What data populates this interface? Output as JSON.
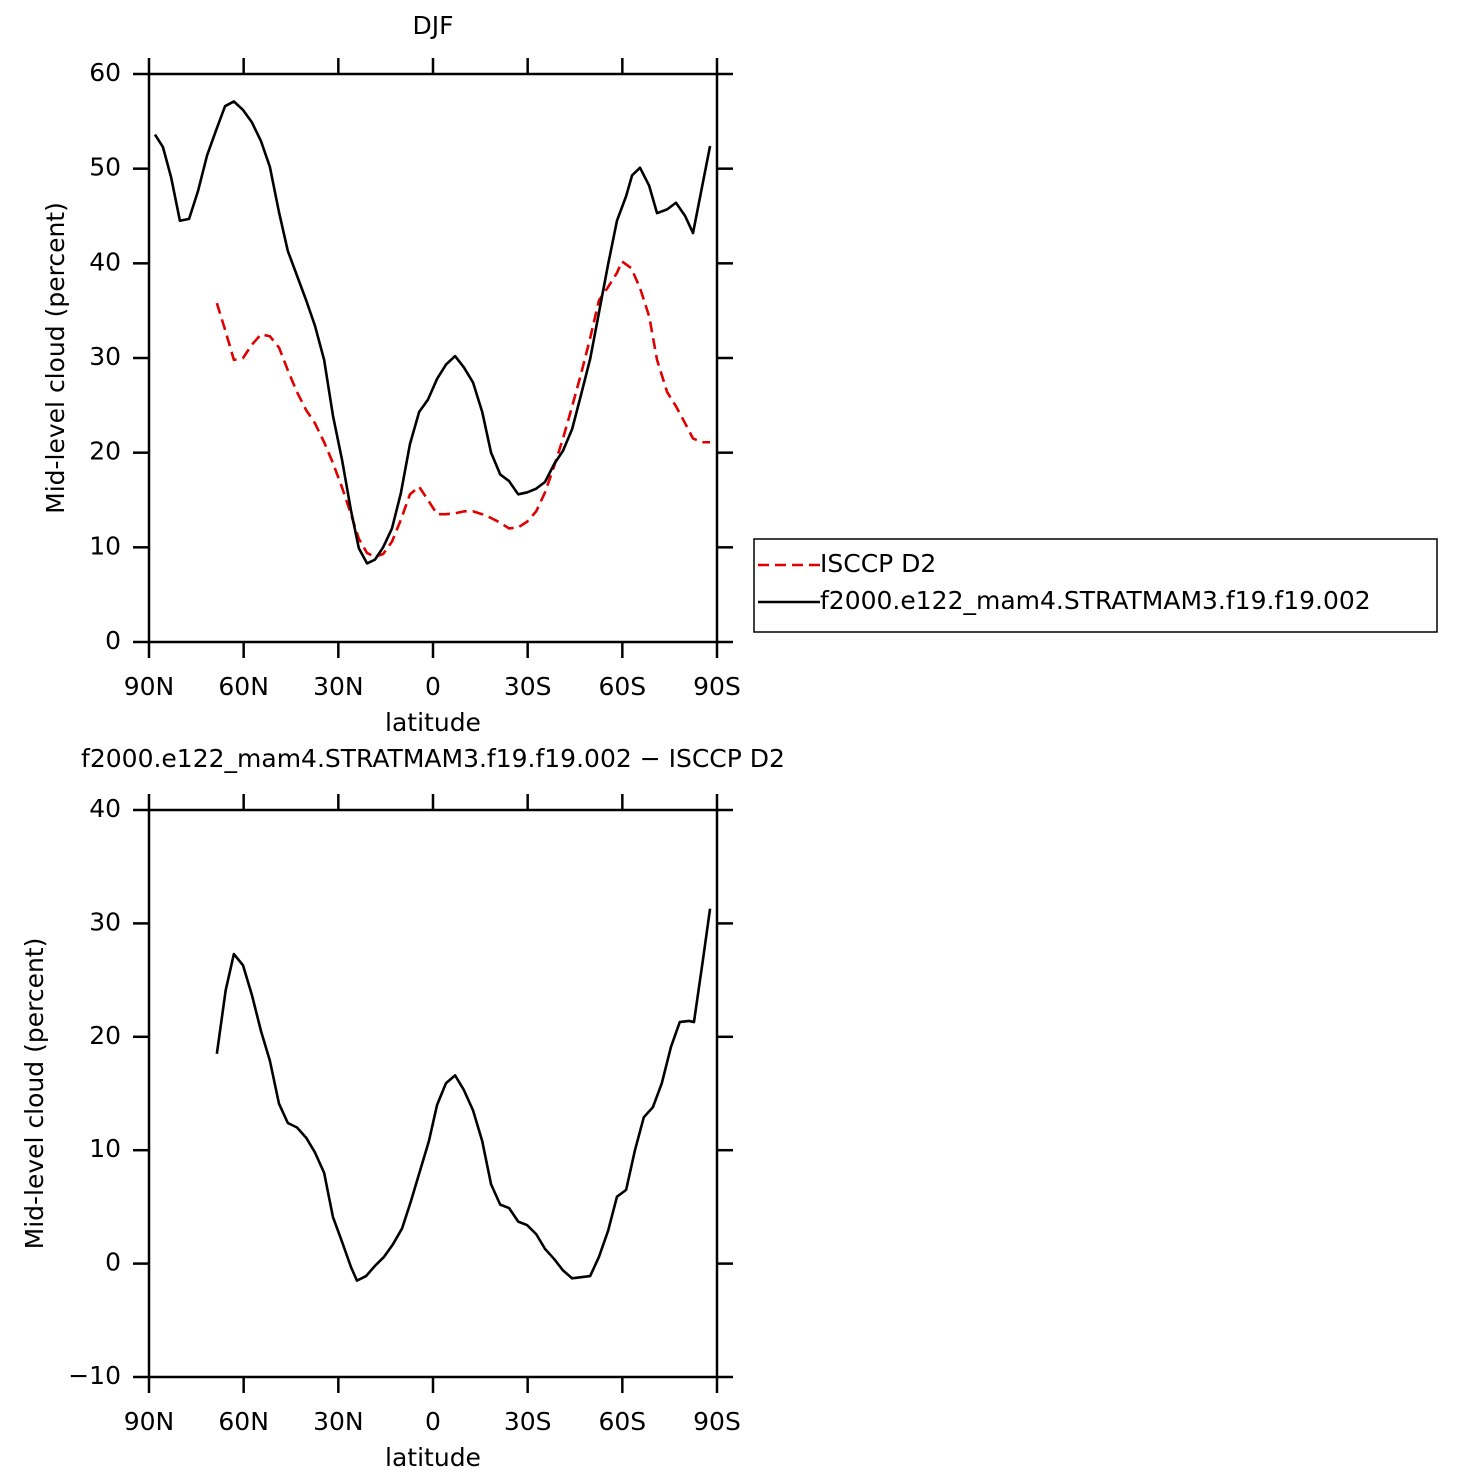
{
  "chart_data": [
    {
      "type": "line",
      "title": "DJF",
      "xlabel": "latitude",
      "ylabel": "Mid-level cloud (percent)",
      "xlim": [
        90,
        -90
      ],
      "xticks": [
        {
          "value": 90,
          "label": "90N"
        },
        {
          "value": 60,
          "label": "60N"
        },
        {
          "value": 30,
          "label": "30N"
        },
        0,
        {
          "value": -30,
          "label": "30S"
        },
        {
          "value": -60,
          "label": "60S"
        },
        {
          "value": -90,
          "label": "90S"
        }
      ],
      "ylim": [
        0,
        60
      ],
      "yticks": [
        0,
        10,
        20,
        30,
        40,
        50,
        60
      ],
      "legend": "right",
      "series": [
        {
          "name": "ISCCP D2",
          "color": "#e00000",
          "dash": true,
          "x": [
            68.5,
            65.9,
            63.1,
            60.2,
            57.4,
            54.5,
            51.7,
            48.8,
            46.0,
            43.1,
            40.2,
            37.4,
            34.5,
            31.7,
            28.8,
            26.0,
            23.5,
            20.9,
            18.4,
            15.8,
            13.0,
            10.2,
            7.3,
            4.4,
            1.6,
            -1.3,
            -4.1,
            -7.0,
            -9.8,
            -12.7,
            -15.6,
            -18.4,
            -21.3,
            -24.1,
            -27.0,
            -29.8,
            -32.7,
            -35.5,
            -38.4,
            -41.2,
            -44.1,
            -46.9,
            -49.8,
            -52.6,
            -55.5,
            -58.3,
            -59.9,
            -62.8,
            -65.6,
            -68.5,
            -71.0,
            -74.2,
            -77.0,
            -79.9,
            -82.4,
            -85.3,
            -87.8
          ],
          "values": [
            35.8,
            33.0,
            29.8,
            30.0,
            31.4,
            32.5,
            32.3,
            31.1,
            28.7,
            26.4,
            24.5,
            23.1,
            21.1,
            18.9,
            16.3,
            13.5,
            10.9,
            9.4,
            9.0,
            9.3,
            10.6,
            12.9,
            15.6,
            16.4,
            15.0,
            13.5,
            13.5,
            13.6,
            13.8,
            13.8,
            13.5,
            13.1,
            12.6,
            12.0,
            12.1,
            12.7,
            13.8,
            15.8,
            18.6,
            21.5,
            24.9,
            28.3,
            32.1,
            36.1,
            37.5,
            39.0,
            40.2,
            39.5,
            37.4,
            34.4,
            29.8,
            26.4,
            24.9,
            23.1,
            21.5,
            21.1,
            21.1
          ]
        },
        {
          "name": "f2000.e122_mam4.STRATMAM3.f19.f19.002",
          "color": "#000000",
          "dash": false,
          "x": [
            88.1,
            85.6,
            83.0,
            80.2,
            77.3,
            74.5,
            71.6,
            68.8,
            65.9,
            63.1,
            60.2,
            57.4,
            54.5,
            51.7,
            48.8,
            46.0,
            43.1,
            40.2,
            37.4,
            34.5,
            31.7,
            28.8,
            26.0,
            23.5,
            20.9,
            18.4,
            15.8,
            13.0,
            10.2,
            7.3,
            4.4,
            1.6,
            -1.3,
            -4.1,
            -7.0,
            -9.8,
            -12.7,
            -15.6,
            -18.4,
            -21.3,
            -24.1,
            -27.0,
            -29.8,
            -32.7,
            -35.5,
            -38.4,
            -41.2,
            -44.1,
            -46.9,
            -49.8,
            -52.6,
            -55.5,
            -58.3,
            -61.2,
            -63.1,
            -65.6,
            -68.5,
            -71.0,
            -74.2,
            -77.0,
            -79.9,
            -82.4,
            -87.8
          ],
          "values": [
            53.6,
            52.3,
            49.1,
            44.5,
            44.7,
            47.6,
            51.4,
            54.0,
            56.6,
            57.1,
            56.2,
            54.9,
            52.9,
            50.2,
            45.4,
            41.3,
            38.7,
            36.1,
            33.4,
            29.8,
            23.9,
            19.2,
            13.9,
            9.9,
            8.3,
            8.7,
            10.0,
            12.0,
            15.7,
            20.9,
            24.3,
            25.6,
            27.8,
            29.3,
            30.2,
            29.0,
            27.4,
            24.3,
            20.0,
            17.7,
            17.0,
            15.6,
            15.8,
            16.2,
            16.9,
            18.8,
            20.2,
            22.5,
            26.1,
            29.9,
            34.8,
            39.9,
            44.5,
            47.1,
            49.3,
            50.1,
            48.2,
            45.3,
            45.7,
            46.4,
            45.0,
            43.2,
            52.4
          ]
        }
      ]
    },
    {
      "type": "line",
      "title": "f2000.e122_mam4.STRATMAM3.f19.f19.002 − ISCCP D2",
      "xlabel": "latitude",
      "ylabel": "Mid-level cloud (percent)",
      "xlim": [
        90,
        -90
      ],
      "xticks": [
        {
          "value": 90,
          "label": "90N"
        },
        {
          "value": 60,
          "label": "60N"
        },
        {
          "value": 30,
          "label": "30N"
        },
        0,
        {
          "value": -30,
          "label": "30S"
        },
        {
          "value": -60,
          "label": "60S"
        },
        {
          "value": -90,
          "label": "90S"
        }
      ],
      "ylim": [
        -10,
        40
      ],
      "yticks": [
        {
          "value": -10,
          "label": "−10"
        },
        0,
        10,
        20,
        30,
        40
      ],
      "series": [
        {
          "color": "#000000",
          "dash": false,
          "x": [
            68.5,
            65.7,
            63.1,
            60.2,
            57.4,
            54.5,
            51.7,
            48.8,
            46.0,
            43.1,
            40.2,
            37.4,
            34.5,
            31.7,
            28.8,
            26.0,
            24.1,
            21.2,
            18.4,
            15.5,
            12.7,
            9.8,
            7.0,
            4.1,
            1.3,
            -1.3,
            -4.1,
            -7.0,
            -9.8,
            -12.7,
            -15.6,
            -18.4,
            -21.3,
            -24.1,
            -27.0,
            -29.8,
            -32.7,
            -35.5,
            -38.4,
            -41.2,
            -44.1,
            -46.9,
            -49.8,
            -52.6,
            -55.5,
            -58.3,
            -61.2,
            -64.0,
            -66.8,
            -69.7,
            -72.5,
            -75.4,
            -78.2,
            -81.1,
            -82.7,
            -85.5,
            -87.8
          ],
          "values": [
            18.5,
            24.1,
            27.3,
            26.3,
            23.7,
            20.5,
            17.9,
            14.1,
            12.4,
            12.0,
            11.1,
            9.8,
            8.0,
            4.1,
            1.9,
            -0.3,
            -1.5,
            -1.1,
            -0.2,
            0.6,
            1.7,
            3.1,
            5.5,
            8.2,
            10.8,
            14.0,
            15.9,
            16.6,
            15.3,
            13.5,
            10.8,
            7.0,
            5.2,
            4.9,
            3.7,
            3.4,
            2.6,
            1.3,
            0.4,
            -0.6,
            -1.3,
            -1.2,
            -1.1,
            0.6,
            2.9,
            5.9,
            6.5,
            10.0,
            12.9,
            13.8,
            15.9,
            19.1,
            21.3,
            21.4,
            21.3,
            26.7,
            31.3
          ]
        }
      ]
    }
  ]
}
